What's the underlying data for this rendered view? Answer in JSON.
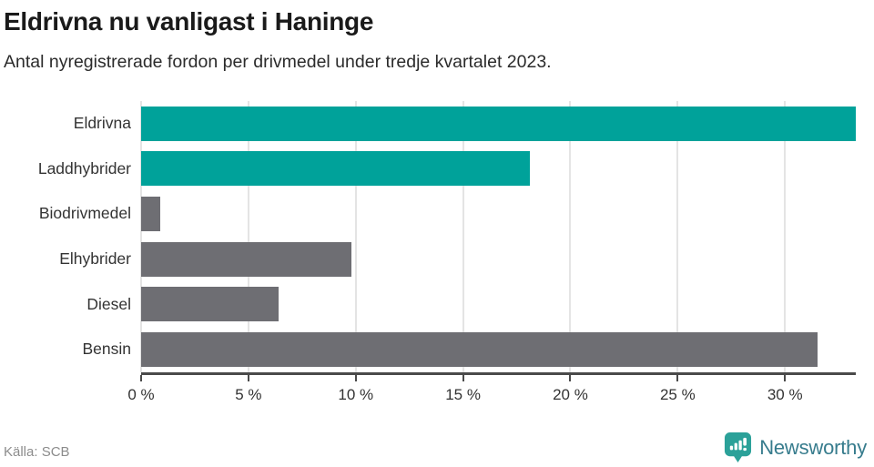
{
  "header": {
    "title": "Eldrivna nu vanligast i Haninge",
    "subtitle": "Antal nyregistrerade fordon per drivmedel under tredje kvartalet 2023."
  },
  "chart_data": {
    "type": "bar",
    "orientation": "horizontal",
    "title": "Eldrivna nu vanligast i Haninge",
    "subtitle": "Antal nyregistrerade fordon per drivmedel under tredje kvartalet 2023.",
    "categories": [
      "Eldrivna",
      "Laddhybrider",
      "Biodrivmedel",
      "Elhybrider",
      "Diesel",
      "Bensin"
    ],
    "values": [
      33.3,
      18.1,
      0.9,
      9.8,
      6.4,
      31.5
    ],
    "unit": "%",
    "bar_colors": [
      "#00a29a",
      "#00a29a",
      "#6e6e73",
      "#6e6e73",
      "#6e6e73",
      "#6e6e73"
    ],
    "xlabel": "",
    "ylabel": "",
    "xlim": [
      0,
      33.3
    ],
    "x_ticks": [
      0,
      5,
      10,
      15,
      20,
      25,
      30
    ],
    "x_tick_labels": [
      "0 %",
      "5 %",
      "10 %",
      "15 %",
      "20 %",
      "25 %",
      "30 %"
    ],
    "grid": true,
    "legend": false
  },
  "footer": {
    "source": "Källa: SCB",
    "brand": "Newsworthy"
  },
  "colors": {
    "accent_teal": "#00a29a",
    "bar_gray": "#6e6e73",
    "grid_line": "#e4e4e4",
    "axis_line": "#4a4a4a",
    "title_text": "#1a1a1a",
    "muted_text": "#8c8c8c",
    "brand_text": "#377c8d",
    "logo_teal": "#2ba199"
  }
}
